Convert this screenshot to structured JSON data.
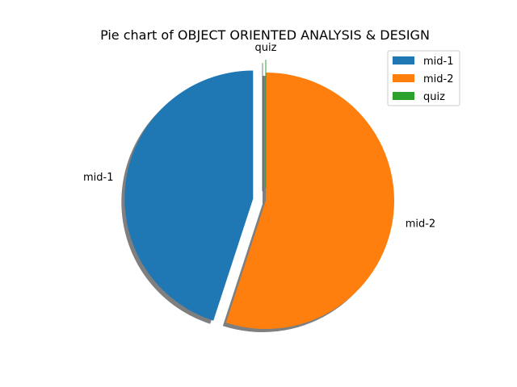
{
  "chart_data": {
    "type": "pie",
    "title": "Pie chart of OBJECT ORIENTED ANALYSIS & DESIGN",
    "slices": [
      {
        "label": "mid-1",
        "value": 45,
        "color": "#1f77b4",
        "exploded": true
      },
      {
        "label": "mid-2",
        "value": 55,
        "color": "#ff7f0e",
        "exploded": false
      },
      {
        "label": "quiz",
        "value": 0,
        "color": "#2ca02c",
        "exploded": true
      }
    ],
    "start_angle_deg": 90,
    "direction": "counterclockwise",
    "shadow": true,
    "legend": {
      "placement": "upper-right",
      "entries": [
        "mid-1",
        "mid-2",
        "quiz"
      ]
    }
  }
}
